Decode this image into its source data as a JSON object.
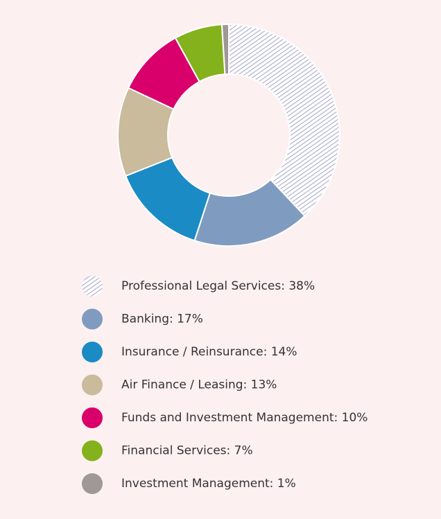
{
  "chart_data": {
    "type": "donut",
    "categories": [
      "Professional Legal Services: 38%",
      "Banking: 17%",
      "Insurance / Reinsurance: 14%",
      "Air Finance / Leasing: 13%",
      "Funds and Investment Management: 10%",
      "Financial Services: 7%",
      "Investment Management: 1%"
    ],
    "values": [
      38,
      17,
      14,
      13,
      10,
      7,
      1
    ],
    "colors": [
      "#a9a9c8",
      "#7f9cc0",
      "#1a8bc4",
      "#c9bb9b",
      "#d9006b",
      "#84b21c",
      "#a09797"
    ],
    "patterns": [
      "diagonal-hatch",
      null,
      null,
      null,
      null,
      null,
      null
    ],
    "legend": "bottom"
  }
}
